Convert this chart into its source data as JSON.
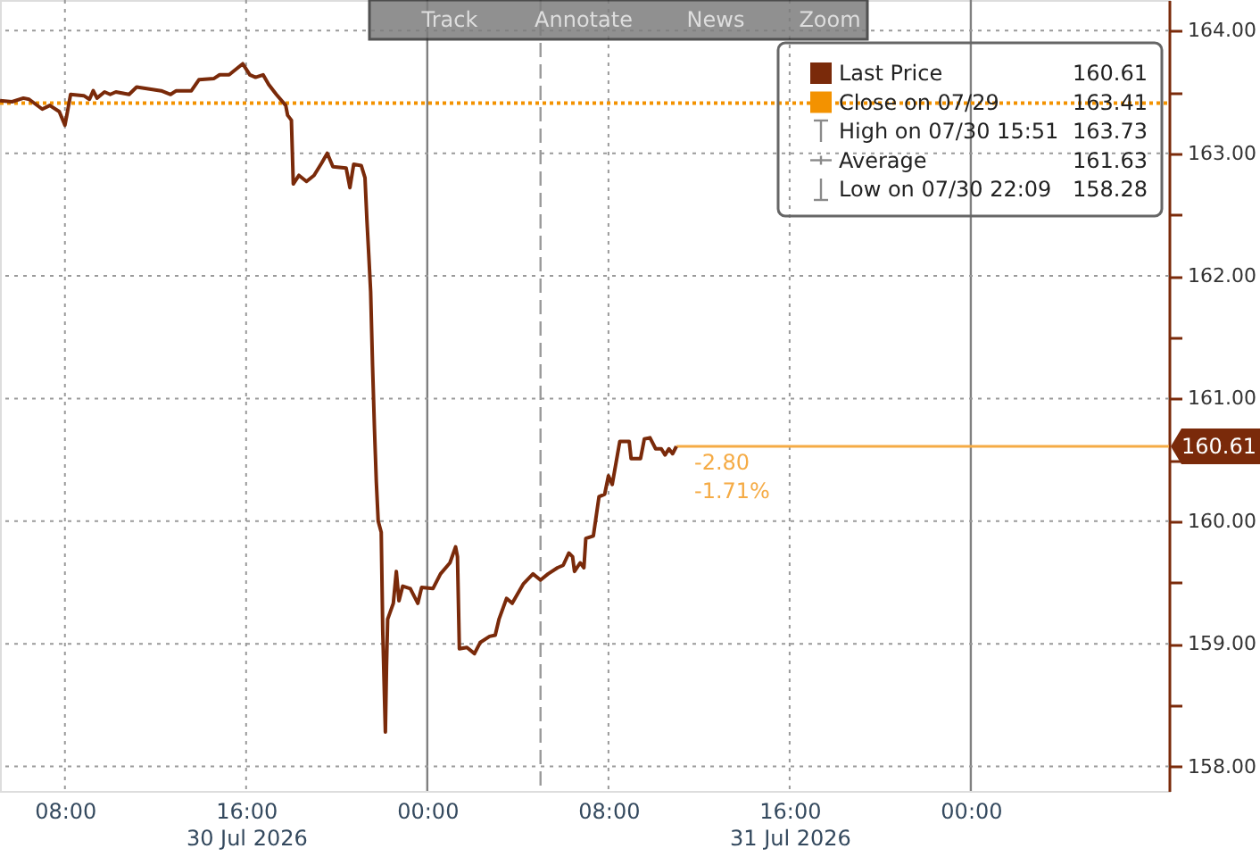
{
  "chart_data": {
    "type": "line",
    "xlim": [
      "2026-07-30T05:08",
      "2026-08-01T08:45"
    ],
    "xticks": [
      {
        "value": "2026-07-30T08:00",
        "label": "08:00"
      },
      {
        "value": "2026-07-30T16:00",
        "label": "16:00\n30 Jul 2026"
      },
      {
        "value": "2026-07-31T00:00",
        "label": "00:00"
      },
      {
        "value": "2026-07-31T08:00",
        "label": "08:00"
      },
      {
        "value": "2026-07-31T16:00",
        "label": "16:00\n31 Jul 2026"
      },
      {
        "value": "2026-08-01T00:00",
        "label": "00:00"
      }
    ],
    "ylim": [
      157.8,
      164.25
    ],
    "yticks": [
      {
        "value": 158,
        "label": "158.00"
      },
      {
        "value": 158.5,
        "label": null
      },
      {
        "value": 159,
        "label": "159.00"
      },
      {
        "value": 159.5,
        "label": null
      },
      {
        "value": 160,
        "label": "160.00"
      },
      {
        "value": 160.5,
        "label": null
      },
      {
        "value": 161,
        "label": "161.00"
      },
      {
        "value": 161.5,
        "label": null
      },
      {
        "value": 162,
        "label": "162.00"
      },
      {
        "value": 162.5,
        "label": null
      },
      {
        "value": 163,
        "label": "163.00"
      },
      {
        "value": 163.5,
        "label": null
      },
      {
        "value": 164,
        "label": "164.00"
      }
    ],
    "grid": true,
    "legend": "top right",
    "series": [
      {
        "name": "Last Price",
        "color": "#7a2a0a",
        "x": [
          "2026-07-30T05:08",
          "2026-07-30T05:40",
          "2026-07-30T06:10",
          "2026-07-30T06:25",
          "2026-07-30T07:00",
          "2026-07-30T07:20",
          "2026-07-30T07:45",
          "2026-07-30T08:00",
          "2026-07-30T08:05",
          "2026-07-30T08:15",
          "2026-07-30T08:50",
          "2026-07-30T09:05",
          "2026-07-30T09:15",
          "2026-07-30T09:25",
          "2026-07-30T09:45",
          "2026-07-30T10:00",
          "2026-07-30T10:15",
          "2026-07-30T10:50",
          "2026-07-30T11:10",
          "2026-07-30T12:15",
          "2026-07-30T12:40",
          "2026-07-30T12:55",
          "2026-07-30T13:35",
          "2026-07-30T13:55",
          "2026-07-30T14:35",
          "2026-07-30T14:50",
          "2026-07-30T15:15",
          "2026-07-30T15:51",
          "2026-07-30T16:10",
          "2026-07-30T16:25",
          "2026-07-30T16:45",
          "2026-07-30T17:00",
          "2026-07-30T17:20",
          "2026-07-30T17:45",
          "2026-07-30T17:50",
          "2026-07-30T18:00",
          "2026-07-30T18:05",
          "2026-07-30T18:20",
          "2026-07-30T18:40",
          "2026-07-30T19:00",
          "2026-07-30T19:20",
          "2026-07-30T19:35",
          "2026-07-30T19:50",
          "2026-07-30T20:25",
          "2026-07-30T20:35",
          "2026-07-30T20:45",
          "2026-07-30T21:05",
          "2026-07-30T21:15",
          "2026-07-30T21:20",
          "2026-07-30T21:25",
          "2026-07-30T21:30",
          "2026-07-30T21:35",
          "2026-07-30T21:40",
          "2026-07-30T21:45",
          "2026-07-30T21:50",
          "2026-07-30T21:58",
          "2026-07-30T22:02",
          "2026-07-30T22:09",
          "2026-07-30T22:12",
          "2026-07-30T22:15",
          "2026-07-30T22:30",
          "2026-07-30T22:38",
          "2026-07-30T22:45",
          "2026-07-30T22:55",
          "2026-07-30T23:15",
          "2026-07-30T23:35",
          "2026-07-30T23:45",
          "2026-07-31T00:15",
          "2026-07-31T00:35",
          "2026-07-31T01:00",
          "2026-07-31T01:15",
          "2026-07-31T01:20",
          "2026-07-31T01:25",
          "2026-07-31T01:45",
          "2026-07-31T02:05",
          "2026-07-31T02:20",
          "2026-07-31T02:45",
          "2026-07-31T03:00",
          "2026-07-31T03:10",
          "2026-07-31T03:30",
          "2026-07-31T03:45",
          "2026-07-31T04:15",
          "2026-07-31T04:40",
          "2026-07-31T05:00",
          "2026-07-31T05:20",
          "2026-07-31T05:45",
          "2026-07-31T06:00",
          "2026-07-31T06:15",
          "2026-07-31T06:25",
          "2026-07-31T06:30",
          "2026-07-31T06:45",
          "2026-07-31T06:55",
          "2026-07-31T07:00",
          "2026-07-31T07:20",
          "2026-07-31T07:35",
          "2026-07-31T07:50",
          "2026-07-31T08:00",
          "2026-07-31T08:10",
          "2026-07-31T08:30",
          "2026-07-31T08:55",
          "2026-07-31T09:00",
          "2026-07-31T09:25",
          "2026-07-31T09:35",
          "2026-07-31T09:50",
          "2026-07-31T10:05",
          "2026-07-31T10:20",
          "2026-07-31T10:30",
          "2026-07-31T10:40",
          "2026-07-31T10:50",
          "2026-07-31T11:00"
        ],
        "values": [
          163.43,
          163.42,
          163.45,
          163.44,
          163.36,
          163.39,
          163.34,
          163.23,
          163.31,
          163.48,
          163.47,
          163.44,
          163.51,
          163.45,
          163.5,
          163.48,
          163.5,
          163.48,
          163.54,
          163.51,
          163.48,
          163.51,
          163.51,
          163.6,
          163.61,
          163.64,
          163.64,
          163.73,
          163.64,
          163.62,
          163.64,
          163.56,
          163.48,
          163.39,
          163.31,
          163.27,
          162.75,
          162.82,
          162.77,
          162.82,
          162.92,
          163.0,
          162.89,
          162.88,
          162.72,
          162.91,
          162.9,
          162.8,
          162.46,
          162.17,
          161.87,
          161.27,
          160.76,
          160.32,
          160.0,
          159.91,
          159.11,
          158.28,
          158.82,
          159.2,
          159.33,
          159.59,
          159.35,
          159.47,
          159.45,
          159.33,
          159.46,
          159.45,
          159.57,
          159.66,
          159.79,
          159.71,
          158.96,
          158.97,
          158.92,
          159.01,
          159.06,
          159.07,
          159.2,
          159.37,
          159.33,
          159.49,
          159.57,
          159.52,
          159.57,
          159.62,
          159.64,
          159.74,
          159.71,
          159.59,
          159.66,
          159.62,
          159.86,
          159.88,
          160.2,
          160.22,
          160.37,
          160.3,
          160.65,
          160.65,
          160.51,
          160.51,
          160.67,
          160.68,
          160.59,
          160.59,
          160.54,
          160.59,
          160.55,
          160.61
        ]
      },
      {
        "name": "Close on 07/29",
        "color": "#f39200",
        "line_style": "dotted",
        "x": [
          "2026-07-30T05:08",
          "2026-08-01T08:45"
        ],
        "values": [
          163.41,
          163.41
        ]
      }
    ],
    "ref_lines": [
      {
        "axis": "y",
        "value": 160.61,
        "label": "160.61",
        "color": "#f5ab45",
        "line_style": "solid"
      },
      {
        "axis": "x",
        "value": "2026-07-31T05:00",
        "color": "#9a9a9a",
        "line_style": "dashed"
      }
    ],
    "annotations": [
      "Track",
      "Annotate",
      "News",
      "Zoom",
      "160.61",
      "163.41",
      "High on 07/30 15:51",
      "163.73",
      "Average",
      "161.63",
      "Low on 07/30 22:09",
      "158.28",
      "-2.80",
      "-1.71%"
    ]
  }
}
